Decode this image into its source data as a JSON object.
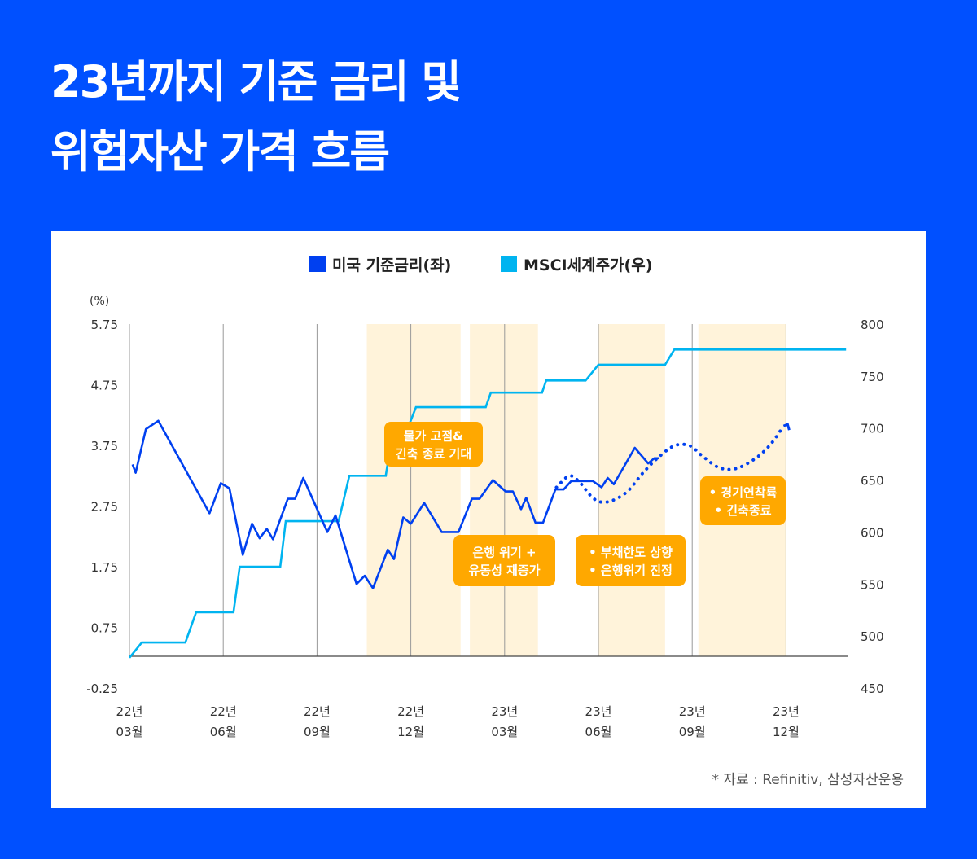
{
  "title": {
    "line1": "23년까지 기준 금리 및",
    "line2": "위험자산 가격 흐름"
  },
  "source": "* 자료 : Refinitiv, 삼성자산운용",
  "colors": {
    "background": "#0050FF",
    "dark_blue": "#0040F0",
    "light_blue": "#00B4F0",
    "shade": "#FFF3DA",
    "annotation": "#FFA800"
  },
  "chart_data": {
    "type": "line",
    "legend": [
      {
        "label": "미국 기준금리(좌)",
        "color": "#0040F0"
      },
      {
        "label": "MSCI세계주가(우)",
        "color": "#00B4F0"
      }
    ],
    "legend_placement": "top-center",
    "y_left": {
      "unit_label": "(%)",
      "ticks": [
        "5.75",
        "4.75",
        "3.75",
        "2.75",
        "1.75",
        "0.75",
        "-0.25"
      ],
      "range": [
        -0.25,
        5.75
      ]
    },
    "y_right": {
      "ticks": [
        "800",
        "750",
        "700",
        "650",
        "600",
        "550",
        "500",
        "450"
      ],
      "range": [
        450,
        800
      ]
    },
    "x_ticks": [
      {
        "date": "2022-03-01",
        "l1": "22년",
        "l2": "03월"
      },
      {
        "date": "2022-06-01",
        "l1": "22년",
        "l2": "06월"
      },
      {
        "date": "2022-09-01",
        "l1": "22년",
        "l2": "09월"
      },
      {
        "date": "2022-12-01",
        "l1": "22년",
        "l2": "12월"
      },
      {
        "date": "2023-03-01",
        "l1": "23년",
        "l2": "03월"
      },
      {
        "date": "2023-06-01",
        "l1": "23년",
        "l2": "06월"
      },
      {
        "date": "2023-09-01",
        "l1": "23년",
        "l2": "09월"
      },
      {
        "date": "2023-12-01",
        "l1": "23년",
        "l2": "12월"
      }
    ],
    "grid": "vertical",
    "shaded_periods": [
      [
        "2022-10-19",
        "2023-01-19"
      ],
      [
        "2023-01-28",
        "2023-04-03"
      ],
      [
        "2023-06-01",
        "2023-08-05"
      ],
      [
        "2023-09-07",
        "2023-12-01"
      ]
    ],
    "step_series": {
      "axis": "left",
      "color": "#00B4F0",
      "points": [
        [
          "2022-03-01",
          0.25
        ],
        [
          "2022-03-13",
          0.5
        ],
        [
          "2022-04-25",
          0.5
        ],
        [
          "2022-05-05",
          1.0
        ],
        [
          "2022-06-11",
          1.0
        ],
        [
          "2022-06-17",
          1.75
        ],
        [
          "2022-07-26",
          1.75
        ],
        [
          "2022-08-01",
          2.5
        ],
        [
          "2022-09-22",
          2.5
        ],
        [
          "2022-10-02",
          3.25
        ],
        [
          "2022-11-07",
          3.25
        ],
        [
          "2022-11-15",
          4.1
        ],
        [
          "2022-11-30",
          4.1
        ],
        [
          "2022-12-06",
          4.38
        ],
        [
          "2023-02-13",
          4.38
        ],
        [
          "2023-02-18",
          4.62
        ],
        [
          "2023-04-07",
          4.62
        ],
        [
          "2023-04-11",
          4.82
        ],
        [
          "2023-05-19",
          4.82
        ],
        [
          "2023-06-01",
          5.08
        ],
        [
          "2023-08-05",
          5.08
        ],
        [
          "2023-08-14",
          5.33
        ],
        [
          "2024-01-29",
          5.33
        ]
      ]
    },
    "index_series": {
      "axis": "right",
      "color": "#0040F0",
      "points": [
        [
          "2022-03-04",
          665
        ],
        [
          "2022-03-07",
          657
        ],
        [
          "2022-03-17",
          699
        ],
        [
          "2022-03-29",
          707
        ],
        [
          "2022-05-18",
          618
        ],
        [
          "2022-05-29",
          647
        ],
        [
          "2022-06-07",
          642
        ],
        [
          "2022-06-20",
          578
        ],
        [
          "2022-06-29",
          608
        ],
        [
          "2022-07-06",
          594
        ],
        [
          "2022-07-13",
          603
        ],
        [
          "2022-07-19",
          593
        ],
        [
          "2022-08-03",
          632
        ],
        [
          "2022-08-10",
          632
        ],
        [
          "2022-08-18",
          652
        ],
        [
          "2022-09-11",
          600
        ],
        [
          "2022-09-19",
          616
        ],
        [
          "2022-10-09",
          550
        ],
        [
          "2022-10-17",
          558
        ],
        [
          "2022-10-25",
          546
        ],
        [
          "2022-11-09",
          583
        ],
        [
          "2022-11-15",
          574
        ],
        [
          "2022-11-24",
          614
        ],
        [
          "2022-12-01",
          608
        ],
        [
          "2022-12-14",
          628
        ],
        [
          "2022-12-31",
          600
        ],
        [
          "2023-01-17",
          600
        ],
        [
          "2023-01-30",
          632
        ],
        [
          "2023-02-07",
          632
        ],
        [
          "2023-02-20",
          650
        ],
        [
          "2023-03-02",
          639
        ],
        [
          "2023-03-09",
          639
        ],
        [
          "2023-03-17",
          622
        ],
        [
          "2023-03-22",
          633
        ],
        [
          "2023-03-31",
          609
        ],
        [
          "2023-04-08",
          609
        ],
        [
          "2023-04-20",
          641
        ],
        [
          "2023-04-28",
          641
        ],
        [
          "2023-05-05",
          649
        ],
        [
          "2023-05-26",
          649
        ],
        [
          "2023-06-04",
          643
        ],
        [
          "2023-06-10",
          652
        ],
        [
          "2023-06-16",
          646
        ],
        [
          "2023-07-06",
          681
        ],
        [
          "2023-07-19",
          666
        ],
        [
          "2023-07-25",
          671
        ],
        [
          "2023-07-30",
          671
        ]
      ]
    },
    "projection_series": {
      "axis": "right",
      "color": "#0040F0",
      "style": "dotted",
      "points": [
        [
          "2023-04-21",
          643
        ],
        [
          "2023-05-03",
          654
        ],
        [
          "2023-05-13",
          648
        ],
        [
          "2023-05-27",
          632
        ],
        [
          "2023-06-10",
          629
        ],
        [
          "2023-06-28",
          638
        ],
        [
          "2023-07-14",
          657
        ],
        [
          "2023-07-28",
          671
        ],
        [
          "2023-08-14",
          683
        ],
        [
          "2023-08-29",
          683
        ],
        [
          "2023-09-11",
          673
        ],
        [
          "2023-09-27",
          662
        ],
        [
          "2023-10-13",
          661
        ],
        [
          "2023-11-02",
          671
        ],
        [
          "2023-11-17",
          685
        ],
        [
          "2023-11-29",
          702
        ]
      ]
    },
    "annotations": [
      {
        "date": "2022-12-01",
        "value": 3.75,
        "lines": [
          "물가 고점&",
          "긴축 종료 기대"
        ]
      },
      {
        "date": "2023-03-01",
        "value": 1.75,
        "lines": [
          "은행 위기 +",
          "유동성 재증가"
        ]
      },
      {
        "date": "2023-06-01",
        "value": 1.75,
        "lines": [
          "• 부채한도 상향",
          "• 은행위기 진정"
        ]
      },
      {
        "date": "2023-10-20",
        "value": 2.75,
        "lines": [
          "• 경기연착륙",
          "• 긴축종료"
        ]
      }
    ]
  }
}
